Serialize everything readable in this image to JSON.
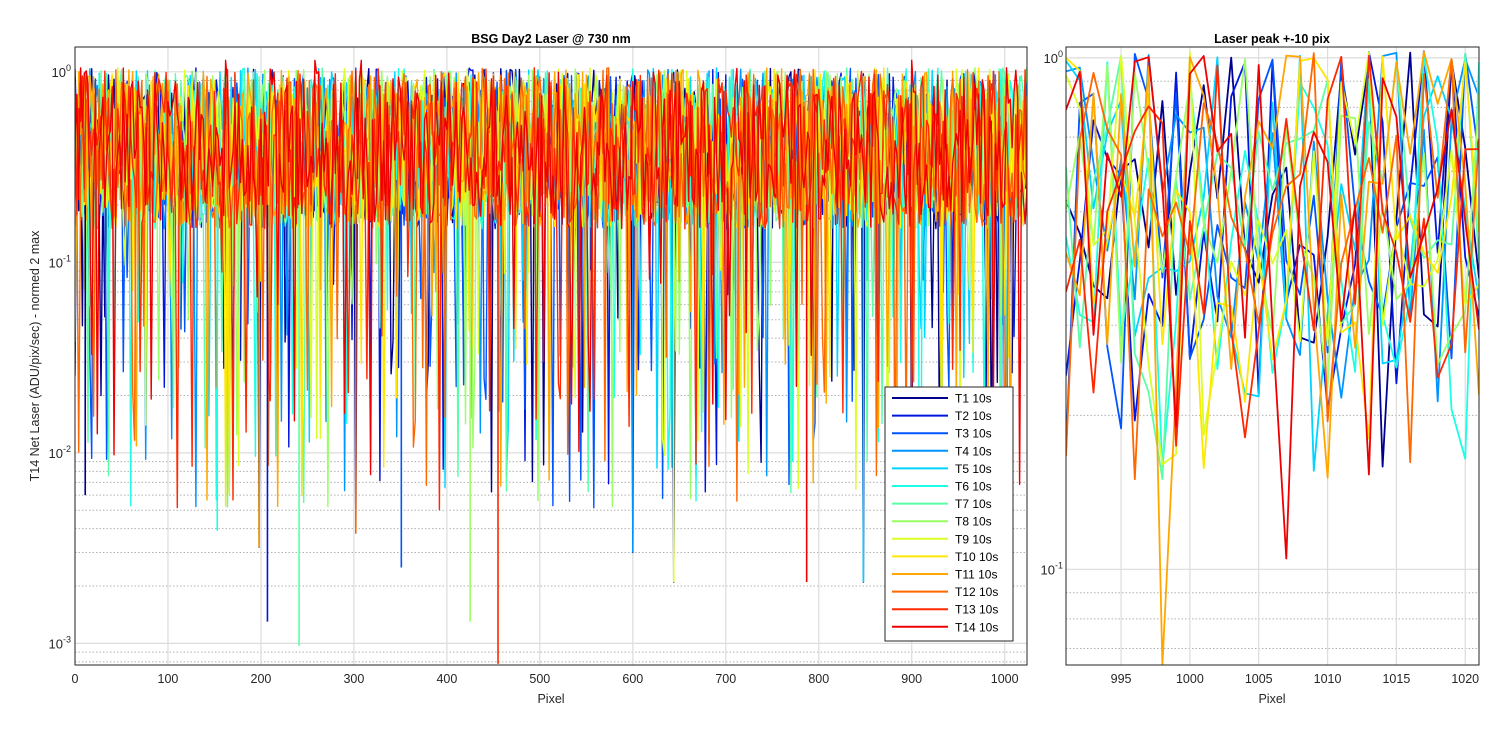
{
  "figure": {
    "left_title": "BSG  Day2 Laser @ 730 nm",
    "left_xlabel": "Pixel",
    "left_ylabel": "T14 Net Laser (ADU/pix/sec) - normed 2 max",
    "right_title": "Laser peak +-10 pix",
    "right_xlabel": "Pixel"
  },
  "chart_data": [
    {
      "type": "line",
      "title": "BSG  Day2 Laser @ 730 nm",
      "xlabel": "Pixel",
      "ylabel": "T14 Net Laser (ADU/pix/sec) - normed 2 max",
      "xlim": [
        0,
        1024
      ],
      "ylim": [
        0.00077,
        1.35
      ],
      "yscale": "log",
      "grid": true,
      "legend_position": "bottom-right",
      "xticks": [
        0,
        100,
        200,
        300,
        400,
        500,
        600,
        700,
        800,
        900,
        1000
      ],
      "yticks": [
        0.001,
        0.01,
        0.1,
        1
      ],
      "ytick_labels": [
        "10^-3",
        "10^-2",
        "10^-1",
        "10^0"
      ],
      "series": [
        {
          "name": "T1 10s",
          "color": "#00008f"
        },
        {
          "name": "T2 10s",
          "color": "#0016e0"
        },
        {
          "name": "T3 10s",
          "color": "#0055ff"
        },
        {
          "name": "T4 10s",
          "color": "#0094ff"
        },
        {
          "name": "T5 10s",
          "color": "#00d4ff"
        },
        {
          "name": "T6 10s",
          "color": "#1affe5"
        },
        {
          "name": "T7 10s",
          "color": "#5aff a5"
        },
        {
          "name": "T8 10s",
          "color": "#99ff66"
        },
        {
          "name": "T9 10s",
          "color": "#d9ff26"
        },
        {
          "name": "T10 10s",
          "color": "#ffe600"
        },
        {
          "name": "T11 10s",
          "color": "#ffa700"
        },
        {
          "name": "T12 10s",
          "color": "#ff6700"
        },
        {
          "name": "T13 10s",
          "color": "#ff2800"
        },
        {
          "name": "T14 10s",
          "color": "#ee0000"
        }
      ],
      "notable_dips": [
        {
          "x": 11,
          "y": 0.006
        },
        {
          "x": 153,
          "y": 0.0039
        },
        {
          "x": 198,
          "y": 0.0032
        },
        {
          "x": 207,
          "y": 0.0013
        },
        {
          "x": 241,
          "y": 0.00097
        },
        {
          "x": 302,
          "y": 0.0038
        },
        {
          "x": 351,
          "y": 0.0025
        },
        {
          "x": 425,
          "y": 0.0013
        },
        {
          "x": 455,
          "y": 0.00078
        },
        {
          "x": 600,
          "y": 0.003
        },
        {
          "x": 644,
          "y": 0.0021
        },
        {
          "x": 787,
          "y": 0.0021
        },
        {
          "x": 848,
          "y": 0.0021
        }
      ]
    },
    {
      "type": "line",
      "title": "Laser peak +-10 pix",
      "xlabel": "Pixel",
      "xlim": [
        991,
        1021
      ],
      "ylim": [
        0.065,
        1.05
      ],
      "yscale": "log",
      "grid": true,
      "xticks": [
        995,
        1000,
        1005,
        1010,
        1015,
        1020
      ],
      "yticks": [
        0.1,
        1
      ],
      "ytick_labels": [
        "10^-1",
        "10^0"
      ],
      "notable_dips": [
        {
          "x": 998,
          "y": 0.065
        },
        {
          "x": 1007,
          "y": 0.105
        },
        {
          "x": 996,
          "y": 0.15
        }
      ]
    }
  ]
}
